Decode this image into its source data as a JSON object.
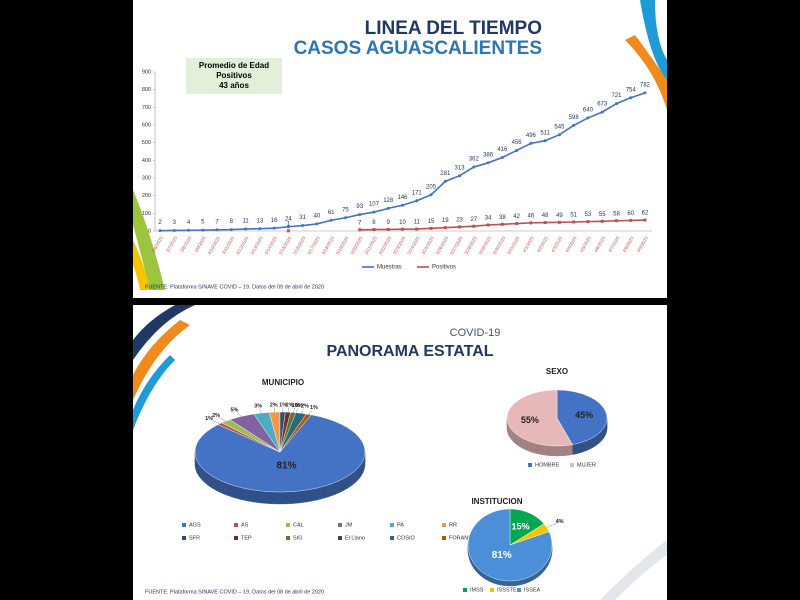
{
  "chart_data": [
    {
      "type": "line",
      "title": "LINEA DEL TIEMPO",
      "subtitle": "CASOS AGUASCALIENTES",
      "annotation": [
        "Promedio de Edad",
        "Positivos",
        "43 años"
      ],
      "source": "FUENTE. Plataforma SINAVE COVID – 19. Datos del 09 de abril de 2020",
      "categories": [
        "3/6/2020",
        "3/7/2020",
        "3/8/2020",
        "3/9/2020",
        "3/10/2020",
        "3/11/2020",
        "3/12/2020",
        "3/13/2020",
        "3/14/2020",
        "3/15/2020",
        "3/16/2020",
        "3/17/2020",
        "3/18/2020",
        "3/19/2020",
        "3/20/2020",
        "3/21/2020",
        "3/22/2020",
        "3/23/2020",
        "3/24/2020",
        "3/25/2020",
        "3/26/2020",
        "3/27/2020",
        "3/28/2020",
        "3/29/2020",
        "3/30/2020",
        "3/31/2020",
        "4/1/2020",
        "4/2/2020",
        "4/3/2020",
        "4/4/2020",
        "4/5/2020",
        "4/6/2020",
        "4/7/2020",
        "4/8/2020",
        "4/9/2020"
      ],
      "series": [
        {
          "name": "Muestras",
          "color": "#4472c4",
          "values": [
            2,
            3,
            4,
            5,
            7,
            8,
            11,
            13,
            16,
            24,
            31,
            40,
            61,
            75,
            93,
            107,
            128,
            146,
            171,
            205,
            281,
            313,
            362,
            386,
            416,
            456,
            496,
            511,
            545,
            598,
            640,
            673,
            721,
            754,
            782
          ]
        },
        {
          "name": "Positivos",
          "color": "#c0504d",
          "values": [
            null,
            null,
            null,
            null,
            null,
            null,
            null,
            null,
            null,
            1,
            null,
            null,
            null,
            null,
            7,
            8,
            9,
            10,
            11,
            15,
            19,
            23,
            27,
            34,
            38,
            42,
            46,
            48,
            49,
            51,
            53,
            55,
            58,
            60,
            62
          ]
        }
      ],
      "ylim": [
        0,
        900
      ],
      "yticks": [
        0,
        100,
        200,
        300,
        400,
        500,
        600,
        700,
        800,
        900
      ],
      "legend": "bottom"
    },
    {
      "type": "pie",
      "title": "MUNICIPIO",
      "categories": [
        "AGS",
        "AS",
        "CAL",
        "JM",
        "PA",
        "RR",
        "SFR",
        "TEP",
        "SIG",
        "El Llano",
        "COSIO",
        "FORANEOS"
      ],
      "values": [
        81,
        1,
        2,
        5,
        3,
        2,
        1,
        1,
        1,
        0,
        2,
        1
      ],
      "value_labels": [
        "81%",
        "1%",
        "2%",
        "5%",
        "3%",
        "2%",
        "1%",
        "1%",
        "1%",
        "0%",
        "2%",
        "1%"
      ],
      "colors": [
        "#4472c4",
        "#c0504d",
        "#9bbb59",
        "#8064a2",
        "#4bacc6",
        "#f79646",
        "#2c4d75",
        "#772c2a",
        "#5f7530",
        "#4d3b62",
        "#276a7c",
        "#b65708"
      ],
      "legend": "bottom"
    },
    {
      "type": "pie",
      "title": "SEXO",
      "categories": [
        "HOMBRE",
        "MUJER"
      ],
      "values": [
        45,
        55
      ],
      "value_labels": [
        "45%",
        "55%"
      ],
      "colors": [
        "#4472c4",
        "#e6b9b8"
      ],
      "legend": "bottom"
    },
    {
      "type": "pie",
      "title": "INSTITUCION",
      "categories": [
        "IMSS",
        "ISSSTE",
        "ISSEA"
      ],
      "values": [
        15,
        4,
        81
      ],
      "value_labels": [
        "15%",
        "4%",
        "81%"
      ],
      "colors": [
        "#00a651",
        "#f5c400",
        "#4a8fd8"
      ],
      "legend": "bottom"
    }
  ],
  "panel": {
    "subtitle": "COVID-19",
    "title": "PANORAMA ESTATAL",
    "source": "FUENTE. Plataforma SINAVE COVID – 19. Datos del 08 de abril de 2020"
  }
}
